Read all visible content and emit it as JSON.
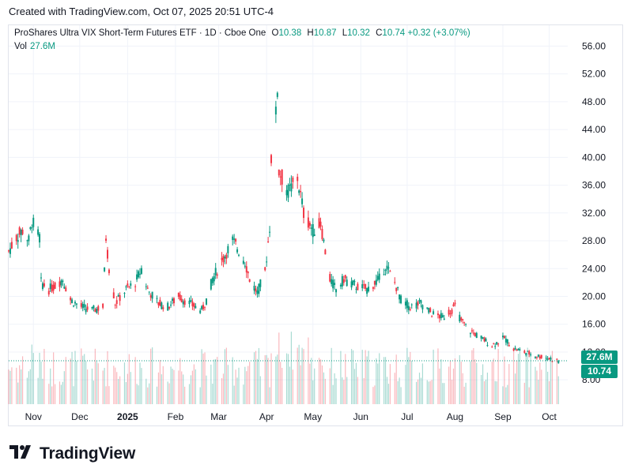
{
  "caption": "Created with TradingView.com, Oct 07, 2025 20:51 UTC-4",
  "legend": {
    "symbol": "ProShares Ultra VIX Short-Term Futures ETF · 1D · Cboe One",
    "open_label": "O",
    "open": "10.38",
    "high_label": "H",
    "high": "10.87",
    "low_label": "L",
    "low": "10.32",
    "close_label": "C",
    "close": "10.74",
    "change": "+0.32 (+3.07%)",
    "vol_label": "Vol",
    "vol_value": "27.6M"
  },
  "badges": {
    "volume": "27.6M",
    "price": "10.74"
  },
  "footer": {
    "brand": "TradingView"
  },
  "colors": {
    "up": "#089981",
    "down": "#f23645",
    "grid": "#f0f3fa",
    "axis_text": "#131722"
  },
  "chart_data": {
    "type": "candlestick",
    "y_axis_ticks": [
      "56.00",
      "52.00",
      "48.00",
      "44.00",
      "40.00",
      "36.00",
      "32.00",
      "28.00",
      "24.00",
      "20.00",
      "16.00",
      "12.00",
      "8.00"
    ],
    "y_tick_values": [
      56,
      52,
      48,
      44,
      40,
      36,
      32,
      28,
      24,
      20,
      16,
      12,
      8
    ],
    "ylim": [
      4.5,
      59
    ],
    "x_axis_labels": [
      "Nov",
      "Dec",
      "2025",
      "Feb",
      "Mar",
      "Apr",
      "May",
      "Jun",
      "Jul",
      "Aug",
      "Sep",
      "Oct"
    ],
    "x_label_dates": [
      "2024-11-01",
      "2024-12-01",
      "2025-01-01",
      "2025-02-01",
      "2025-03-01",
      "2025-04-01",
      "2025-05-01",
      "2025-06-01",
      "2025-07-01",
      "2025-08-01",
      "2025-09-01",
      "2025-10-01"
    ],
    "x_range": [
      "2024-10-16",
      "2025-10-13"
    ],
    "close_series": [
      [
        "2024-10-16",
        26.5
      ],
      [
        "2024-10-21",
        28.5
      ],
      [
        "2024-10-25",
        29.5
      ],
      [
        "2024-10-29",
        28.0
      ],
      [
        "2024-10-31",
        30.8
      ],
      [
        "2024-11-05",
        28.5
      ],
      [
        "2024-11-06",
        22.0
      ],
      [
        "2024-11-11",
        21.0
      ],
      [
        "2024-11-15",
        21.5
      ],
      [
        "2024-11-20",
        22.5
      ],
      [
        "2024-11-25",
        19.5
      ],
      [
        "2024-12-02",
        18.5
      ],
      [
        "2024-12-09",
        18.0
      ],
      [
        "2024-12-16",
        18.5
      ],
      [
        "2024-12-18",
        28.5
      ],
      [
        "2024-12-20",
        24.0
      ],
      [
        "2024-12-24",
        19.0
      ],
      [
        "2024-12-31",
        21.0
      ],
      [
        "2025-01-06",
        22.0
      ],
      [
        "2025-01-10",
        24.0
      ],
      [
        "2025-01-14",
        21.0
      ],
      [
        "2025-01-21",
        19.0
      ],
      [
        "2025-01-27",
        18.5
      ],
      [
        "2025-02-03",
        20.0
      ],
      [
        "2025-02-10",
        19.0
      ],
      [
        "2025-02-18",
        18.0
      ],
      [
        "2025-02-21",
        19.5
      ],
      [
        "2025-02-25",
        22.5
      ],
      [
        "2025-03-04",
        25.5
      ],
      [
        "2025-03-10",
        28.0
      ],
      [
        "2025-03-13",
        27.0
      ],
      [
        "2025-03-18",
        25.0
      ],
      [
        "2025-03-21",
        22.5
      ],
      [
        "2025-03-26",
        20.5
      ],
      [
        "2025-03-31",
        23.5
      ],
      [
        "2025-04-03",
        30.0
      ],
      [
        "2025-04-04",
        40.0
      ],
      [
        "2025-04-07",
        46.0
      ],
      [
        "2025-04-08",
        50.0
      ],
      [
        "2025-04-09",
        38.0
      ],
      [
        "2025-04-15",
        35.0
      ],
      [
        "2025-04-21",
        37.0
      ],
      [
        "2025-04-25",
        32.0
      ],
      [
        "2025-05-01",
        29.5
      ],
      [
        "2025-05-06",
        30.5
      ],
      [
        "2025-05-12",
        22.5
      ],
      [
        "2025-05-16",
        21.0
      ],
      [
        "2025-05-21",
        22.5
      ],
      [
        "2025-05-29",
        21.5
      ],
      [
        "2025-06-05",
        21.0
      ],
      [
        "2025-06-13",
        22.5
      ],
      [
        "2025-06-17",
        24.5
      ],
      [
        "2025-06-23",
        22.0
      ],
      [
        "2025-06-27",
        19.5
      ],
      [
        "2025-07-03",
        18.5
      ],
      [
        "2025-07-10",
        19.0
      ],
      [
        "2025-07-17",
        17.5
      ],
      [
        "2025-07-24",
        17.0
      ],
      [
        "2025-08-01",
        18.5
      ],
      [
        "2025-08-05",
        16.5
      ],
      [
        "2025-08-11",
        15.0
      ],
      [
        "2025-08-18",
        14.0
      ],
      [
        "2025-08-25",
        13.0
      ],
      [
        "2025-09-02",
        14.0
      ],
      [
        "2025-09-08",
        12.5
      ],
      [
        "2025-09-15",
        12.0
      ],
      [
        "2025-09-22",
        11.5
      ],
      [
        "2025-09-29",
        11.2
      ],
      [
        "2025-10-07",
        10.74
      ]
    ],
    "last_bar": {
      "date": "2025-10-07",
      "open": 10.38,
      "high": 10.87,
      "low": 10.32,
      "close": 10.74,
      "volume": "27.6M"
    },
    "grid": true
  }
}
